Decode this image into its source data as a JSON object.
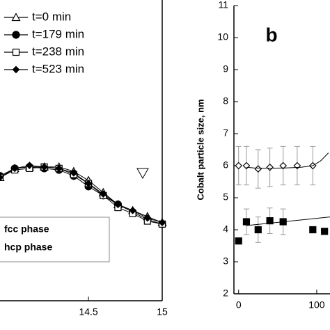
{
  "chart_data": [
    {
      "type": "line",
      "x": [
        13.9,
        14.0,
        14.1,
        14.2,
        14.3,
        14.4,
        14.5,
        14.6,
        14.7,
        14.8,
        14.9,
        15.0
      ],
      "xlim": [
        13.9,
        15
      ],
      "xticks": [
        14.5,
        15
      ],
      "ylim": [
        0,
        1
      ],
      "series": [
        {
          "name": "t=0 min",
          "color": "#000000",
          "marker": "triangle-open",
          "values": [
            0.41,
            0.44,
            0.445,
            0.445,
            0.445,
            0.43,
            0.4,
            0.36,
            0.32,
            0.3,
            0.28,
            0.26
          ]
        },
        {
          "name": "t=179 min",
          "color": "#000000",
          "marker": "circle",
          "values": [
            0.415,
            0.44,
            0.445,
            0.44,
            0.435,
            0.415,
            0.38,
            0.35,
            0.32,
            0.295,
            0.27,
            0.255
          ]
        },
        {
          "name": "t=238 min",
          "color": "#000000",
          "marker": "square-open",
          "values": [
            0.41,
            0.435,
            0.44,
            0.445,
            0.44,
            0.42,
            0.39,
            0.35,
            0.31,
            0.29,
            0.265,
            0.255
          ]
        },
        {
          "name": "t=523 min",
          "color": "#000000",
          "marker": "diamond",
          "values": [
            0.41,
            0.44,
            0.45,
            0.445,
            0.44,
            0.425,
            0.39,
            0.355,
            0.32,
            0.3,
            0.275,
            0.26
          ]
        }
      ],
      "annotations": [
        "fcc phase",
        "hcp phase"
      ]
    },
    {
      "type": "scatter",
      "label": "b",
      "ylabel": "Cobalt particle size, nm",
      "xlim": [
        -6,
        117
      ],
      "xticks": [
        0,
        100
      ],
      "ylim": [
        2,
        11
      ],
      "yticks": [
        2,
        3,
        4,
        5,
        6,
        7,
        8,
        9,
        10,
        11
      ],
      "series": [
        {
          "color": "#000000",
          "marker": "diamond-open",
          "x": [
            0,
            10,
            25,
            40,
            57,
            75,
            95
          ],
          "values": [
            6.0,
            6.0,
            5.9,
            5.95,
            6.0,
            6.0,
            6.0
          ],
          "errors": [
            0.6,
            0.6,
            0.6,
            0.6,
            0.6,
            0.6,
            0.6
          ]
        },
        {
          "color": "#000000",
          "marker": "square",
          "x": [
            0,
            10,
            25,
            40,
            57,
            95,
            110
          ],
          "values": [
            3.65,
            4.25,
            4.0,
            4.28,
            4.25,
            4.0,
            3.95
          ],
          "errors": [
            0,
            0.4,
            0.4,
            0.4,
            0.4,
            0,
            0
          ]
        },
        {
          "color": "#000000",
          "marker": "none",
          "x": [
            10,
            20,
            40,
            60,
            80,
            95,
            105,
            115
          ],
          "values": [
            5.95,
            5.93,
            5.92,
            5.93,
            5.95,
            6.0,
            6.15,
            6.4
          ]
        },
        {
          "color": "#000000",
          "marker": "none",
          "x": [
            10,
            117
          ],
          "values": [
            4.13,
            4.4
          ]
        }
      ]
    }
  ]
}
